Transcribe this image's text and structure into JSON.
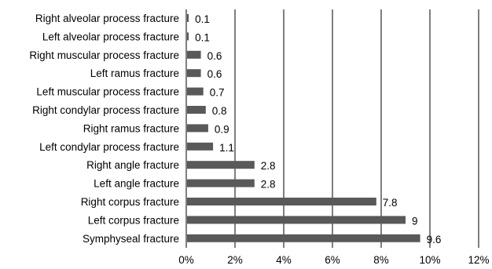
{
  "chart_data": {
    "type": "bar",
    "orientation": "horizontal",
    "categories": [
      "Right alveolar process fracture",
      "Left alveolar process fracture",
      "Right muscular process fracture",
      "Left ramus fracture",
      "Left muscular process fracture",
      "Right condylar process fracture",
      "Right ramus fracture",
      "Left condylar process fracture",
      "Right angle fracture",
      "Left angle fracture",
      "Right corpus fracture",
      "Left corpus fracture",
      "Symphyseal fracture"
    ],
    "values": [
      0.1,
      0.1,
      0.6,
      0.6,
      0.7,
      0.8,
      0.9,
      1.1,
      2.8,
      2.8,
      7.8,
      9,
      9.6
    ],
    "value_labels": [
      "0.1",
      "0.1",
      "0.6",
      "0.6",
      "0.7",
      "0.8",
      "0.9",
      "1.1",
      "2.8",
      "2.8",
      "7.8",
      "9",
      "9.6"
    ],
    "x_ticks": [
      0,
      2,
      4,
      6,
      8,
      10,
      12
    ],
    "x_tick_labels": [
      "0%",
      "2%",
      "4%",
      "6%",
      "8%",
      "10%",
      "12%"
    ],
    "xlim": [
      0,
      12
    ],
    "grid": "vertical major gridlines",
    "bar_color": "#595959",
    "grid_color": "#7f7f7f",
    "title": "",
    "xlabel": "",
    "ylabel": ""
  }
}
